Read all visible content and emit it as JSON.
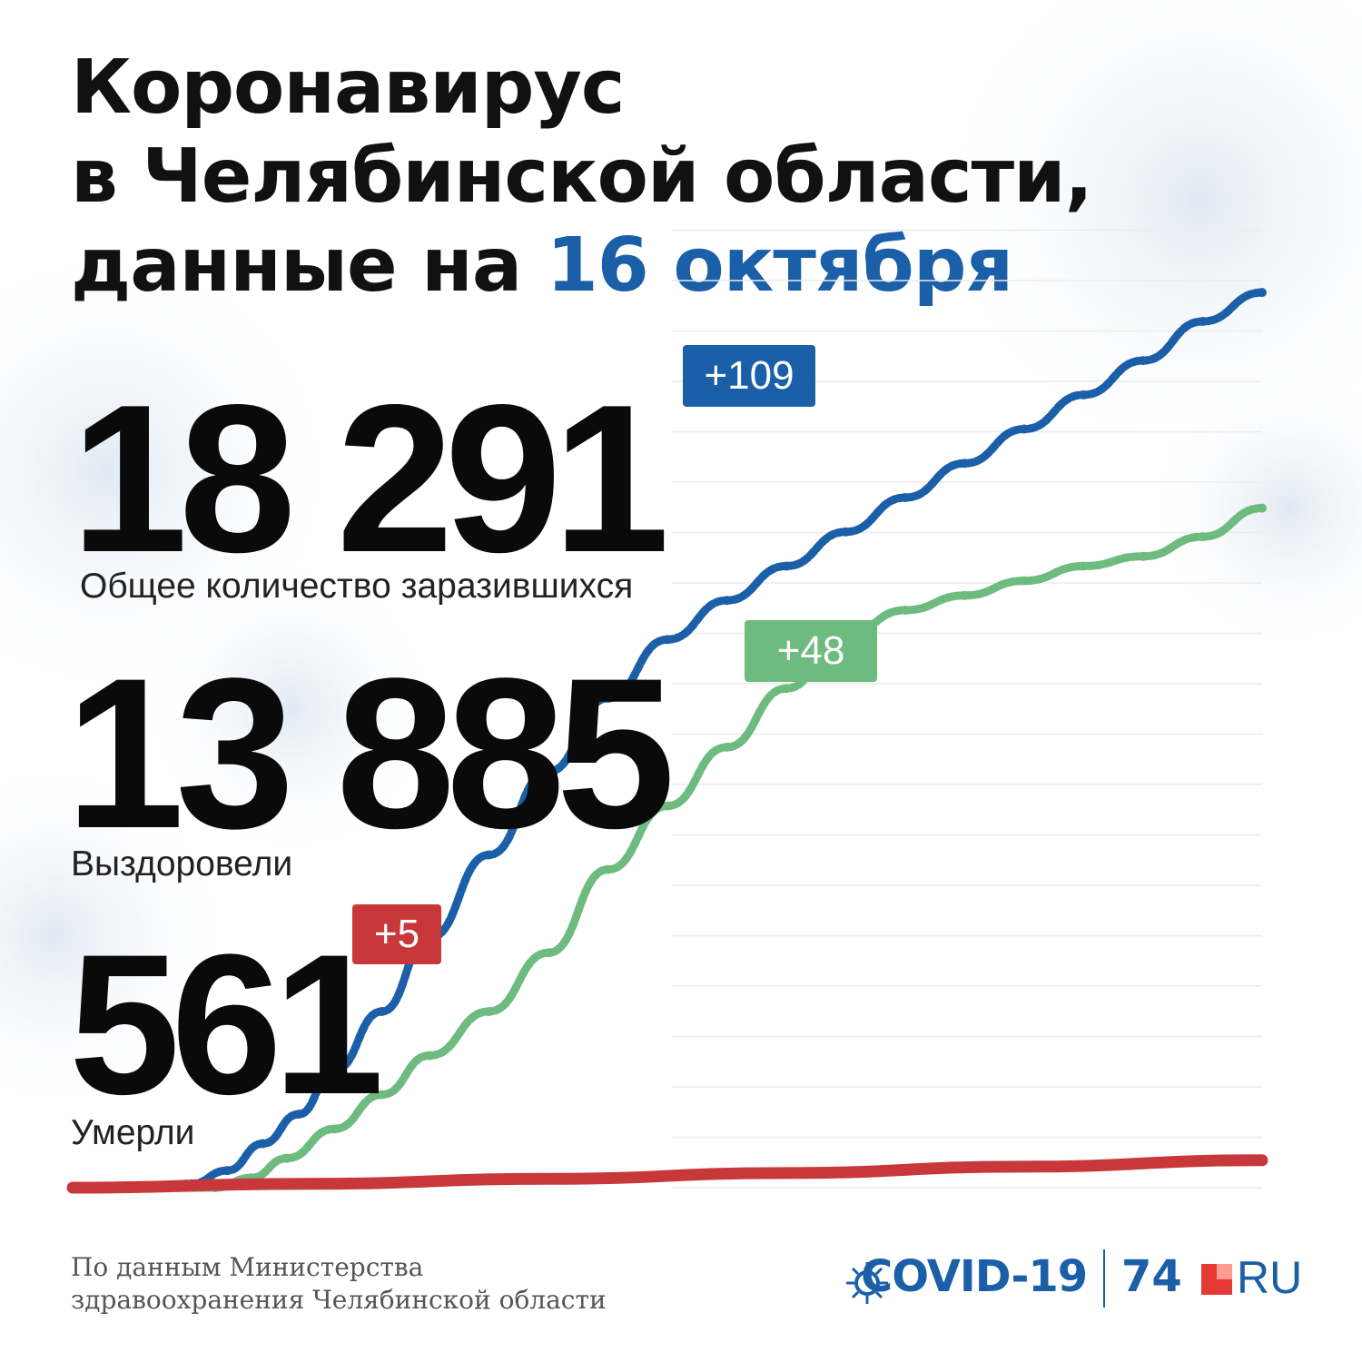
{
  "title": {
    "line1": "Коронавирус",
    "line2": "в Челябинской области,",
    "line3_prefix": "данные на ",
    "line3_date": "16 октября"
  },
  "stats": {
    "infected": {
      "value": "18 291",
      "label": "Общее количество заразившихся",
      "delta": "+109",
      "color": "#1a5fa8"
    },
    "recovered": {
      "value": "13 885",
      "label": "Выздоровели",
      "delta": "+48",
      "color": "#6dbb7e"
    },
    "deaths": {
      "value": "561",
      "label": "Умерли",
      "delta": "+5",
      "color": "#c8373a"
    }
  },
  "source": {
    "line1": "По данным Министерства",
    "line2": "здравоохранения Челябинской области"
  },
  "logo": {
    "covid": "COVID-19",
    "num": "74",
    "ru": "RU"
  },
  "chart_data": {
    "type": "line",
    "title": "",
    "xlabel": "",
    "ylabel": "",
    "ylim": [
      0,
      20000
    ],
    "grid": true,
    "series": [
      {
        "color": "#1a5fa8",
        "x": [
          0,
          6,
          10,
          13,
          16,
          19,
          22,
          26,
          30,
          35,
          40,
          45,
          50,
          55,
          60,
          65,
          70,
          75,
          80,
          85,
          90,
          95,
          100
        ],
        "values": [
          0,
          0,
          80,
          350,
          900,
          1500,
          2400,
          3600,
          5100,
          6800,
          8500,
          10000,
          11200,
          12000,
          12700,
          13400,
          14100,
          14800,
          15500,
          16200,
          16900,
          17700,
          18291
        ]
      },
      {
        "color": "#6dbb7e",
        "x": [
          0,
          12,
          15,
          18,
          22,
          26,
          30,
          35,
          40,
          45,
          50,
          55,
          60,
          65,
          70,
          75,
          80,
          85,
          90,
          95,
          100
        ],
        "values": [
          0,
          0,
          200,
          600,
          1200,
          1900,
          2700,
          3600,
          4800,
          6500,
          7800,
          9000,
          10200,
          11300,
          11800,
          12100,
          12400,
          12700,
          12900,
          13300,
          13885
        ]
      },
      {
        "color": "#c8373a",
        "x": [
          0,
          20,
          40,
          60,
          80,
          100
        ],
        "values": [
          0,
          80,
          180,
          300,
          430,
          561
        ]
      }
    ]
  }
}
